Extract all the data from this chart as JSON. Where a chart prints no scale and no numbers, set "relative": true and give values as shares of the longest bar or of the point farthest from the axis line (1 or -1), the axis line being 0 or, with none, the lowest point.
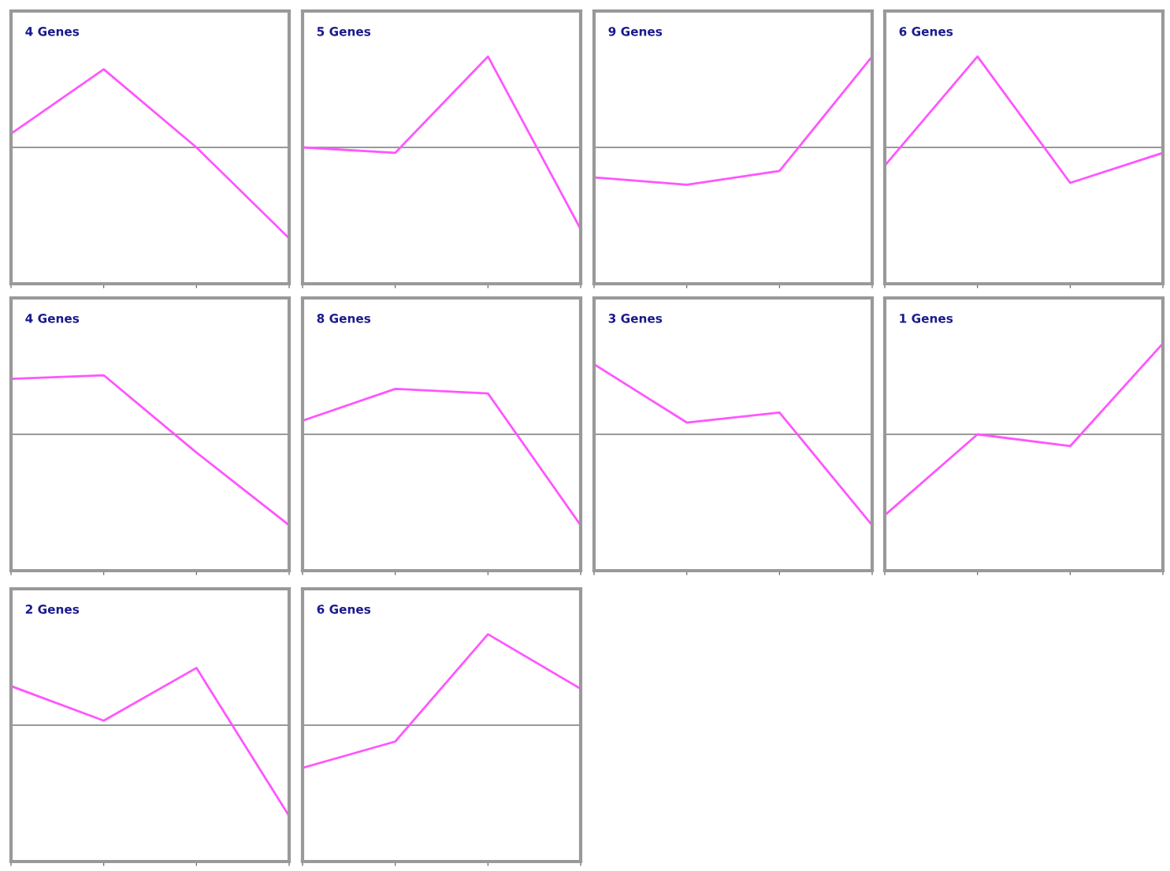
{
  "chart_data": [
    {
      "type": "line",
      "title": "4 Genes",
      "relative": true,
      "categories": [
        null,
        null,
        null,
        null
      ],
      "series": [
        {
          "color": "#ff55ff",
          "values": [
            0.15,
            0.86,
            0,
            -1
          ]
        }
      ]
    },
    {
      "type": "line",
      "title": "5 Genes",
      "relative": true,
      "categories": [
        null,
        null,
        null,
        null
      ],
      "series": [
        {
          "color": "#ff55ff",
          "values": [
            0,
            -0.06,
            1,
            -0.9
          ]
        }
      ]
    },
    {
      "type": "line",
      "title": "9 Genes",
      "relative": true,
      "categories": [
        null,
        null,
        null,
        null
      ],
      "series": [
        {
          "color": "#ff55ff",
          "values": [
            -0.33,
            -0.41,
            -0.26,
            1
          ]
        }
      ]
    },
    {
      "type": "line",
      "title": "6 Genes",
      "relative": true,
      "categories": [
        null,
        null,
        null,
        null
      ],
      "series": [
        {
          "color": "#ff55ff",
          "values": [
            -0.2,
            1,
            -0.39,
            -0.06
          ]
        }
      ]
    },
    {
      "type": "line",
      "title": "4 Genes",
      "relative": true,
      "categories": [
        null,
        null,
        null,
        null
      ],
      "series": [
        {
          "color": "#ff55ff",
          "values": [
            0.61,
            0.65,
            -0.2,
            -1
          ]
        }
      ]
    },
    {
      "type": "line",
      "title": "8 Genes",
      "relative": true,
      "categories": [
        null,
        null,
        null,
        null
      ],
      "series": [
        {
          "color": "#ff55ff",
          "values": [
            0.15,
            0.5,
            0.45,
            -1
          ]
        }
      ]
    },
    {
      "type": "line",
      "title": "3 Genes",
      "relative": true,
      "categories": [
        null,
        null,
        null,
        null
      ],
      "series": [
        {
          "color": "#ff55ff",
          "values": [
            0.77,
            0.13,
            0.24,
            -1
          ]
        }
      ]
    },
    {
      "type": "line",
      "title": "1 Genes",
      "relative": true,
      "categories": [
        null,
        null,
        null,
        null
      ],
      "series": [
        {
          "color": "#ff55ff",
          "values": [
            -0.89,
            0,
            -0.13,
            1
          ]
        }
      ]
    },
    {
      "type": "line",
      "title": "2 Genes",
      "relative": true,
      "categories": [
        null,
        null,
        null,
        null
      ],
      "series": [
        {
          "color": "#ff55ff",
          "values": [
            0.43,
            0.05,
            0.63,
            -1
          ]
        }
      ]
    },
    {
      "type": "line",
      "title": "6 Genes",
      "relative": true,
      "categories": [
        null,
        null,
        null,
        null
      ],
      "series": [
        {
          "color": "#ff55ff",
          "values": [
            -0.47,
            -0.18,
            1,
            0.4
          ]
        }
      ]
    }
  ]
}
